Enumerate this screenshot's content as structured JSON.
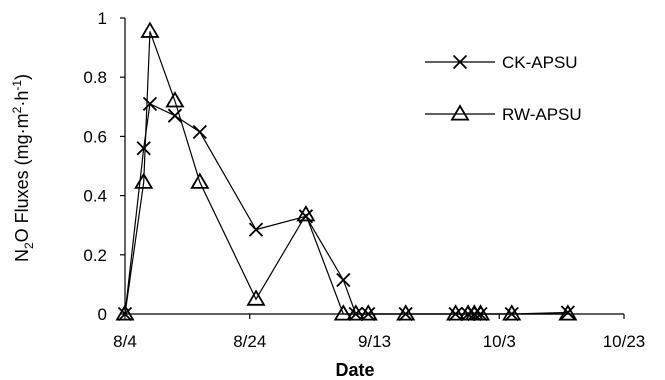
{
  "chart_data": {
    "type": "line",
    "title": "",
    "xlabel": "Date",
    "ylabel_parts": {
      "n": "N",
      "sub2": "2",
      "flux": "O Fluxes (mg·m",
      "sup2": "2",
      "dot_h": "·h",
      "supneg1": "-1",
      "close": ")"
    },
    "x_ticks": [
      "8/4",
      "8/24",
      "9/13",
      "10/3",
      "10/23"
    ],
    "x_tick_days": [
      0,
      20,
      40,
      60,
      80
    ],
    "xlim_days": [
      0,
      80
    ],
    "y_ticks": [
      "0",
      "0.2",
      "0.4",
      "0.6",
      "0.8",
      "1"
    ],
    "ylim": [
      0,
      1
    ],
    "legend_position": "top-right",
    "series": [
      {
        "name": "CK-APSU",
        "marker": "x",
        "x": [
          "8/4",
          "8/7",
          "8/8",
          "8/12",
          "8/16",
          "8/25",
          "9/2",
          "9/8",
          "9/10",
          "9/12",
          "9/18",
          "9/26",
          "9/28",
          "9/29",
          "9/30",
          "10/5",
          "10/14"
        ],
        "y": [
          0,
          0.56,
          0.71,
          0.67,
          0.615,
          0.285,
          0.33,
          0.115,
          0,
          0,
          0,
          0,
          0,
          0,
          0,
          0,
          0.005
        ]
      },
      {
        "name": "RW-APSU",
        "marker": "triangle",
        "x": [
          "8/4",
          "8/7",
          "8/8",
          "8/12",
          "8/16",
          "8/25",
          "9/2",
          "9/8",
          "9/10",
          "9/12",
          "9/18",
          "9/26",
          "9/28",
          "9/29",
          "9/30",
          "10/5",
          "10/14"
        ],
        "y": [
          0,
          0.445,
          0.955,
          0.72,
          0.445,
          0.05,
          0.335,
          0,
          0,
          0,
          0,
          0,
          0,
          0,
          0,
          0,
          0
        ]
      }
    ]
  }
}
